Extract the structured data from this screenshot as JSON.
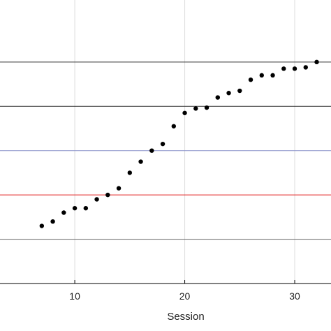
{
  "chart_data": {
    "type": "scatter",
    "xlabel": "Session",
    "ylabel": "",
    "title": "",
    "xlim": [
      3.2,
      33.3
    ],
    "ylim": [
      0,
      6.4
    ],
    "x_ticks": [
      10,
      20,
      30
    ],
    "x_tick_labels": [
      "10",
      "20",
      "30"
    ],
    "grid": "vertical",
    "reference_lines": [
      {
        "y": 1,
        "color": "#666666"
      },
      {
        "y": 2,
        "color": "#e02020"
      },
      {
        "y": 3,
        "color": "#8890c8"
      },
      {
        "y": 4,
        "color": "#333333"
      },
      {
        "y": 5,
        "color": "#333333"
      }
    ],
    "marker_color": "#000000",
    "series": [
      {
        "x": [
          7,
          8,
          9,
          10,
          11,
          12,
          13,
          14,
          15,
          16,
          17,
          18,
          19,
          20,
          21,
          22,
          23,
          24,
          25,
          26,
          27,
          28,
          29,
          30,
          31,
          32
        ],
        "y": [
          1.3,
          1.4,
          1.6,
          1.7,
          1.7,
          1.9,
          2.0,
          2.15,
          2.5,
          2.75,
          3.0,
          3.15,
          3.55,
          3.85,
          3.95,
          3.97,
          4.2,
          4.3,
          4.35,
          4.6,
          4.7,
          4.7,
          4.85,
          4.85,
          4.88,
          5.0
        ]
      }
    ]
  }
}
